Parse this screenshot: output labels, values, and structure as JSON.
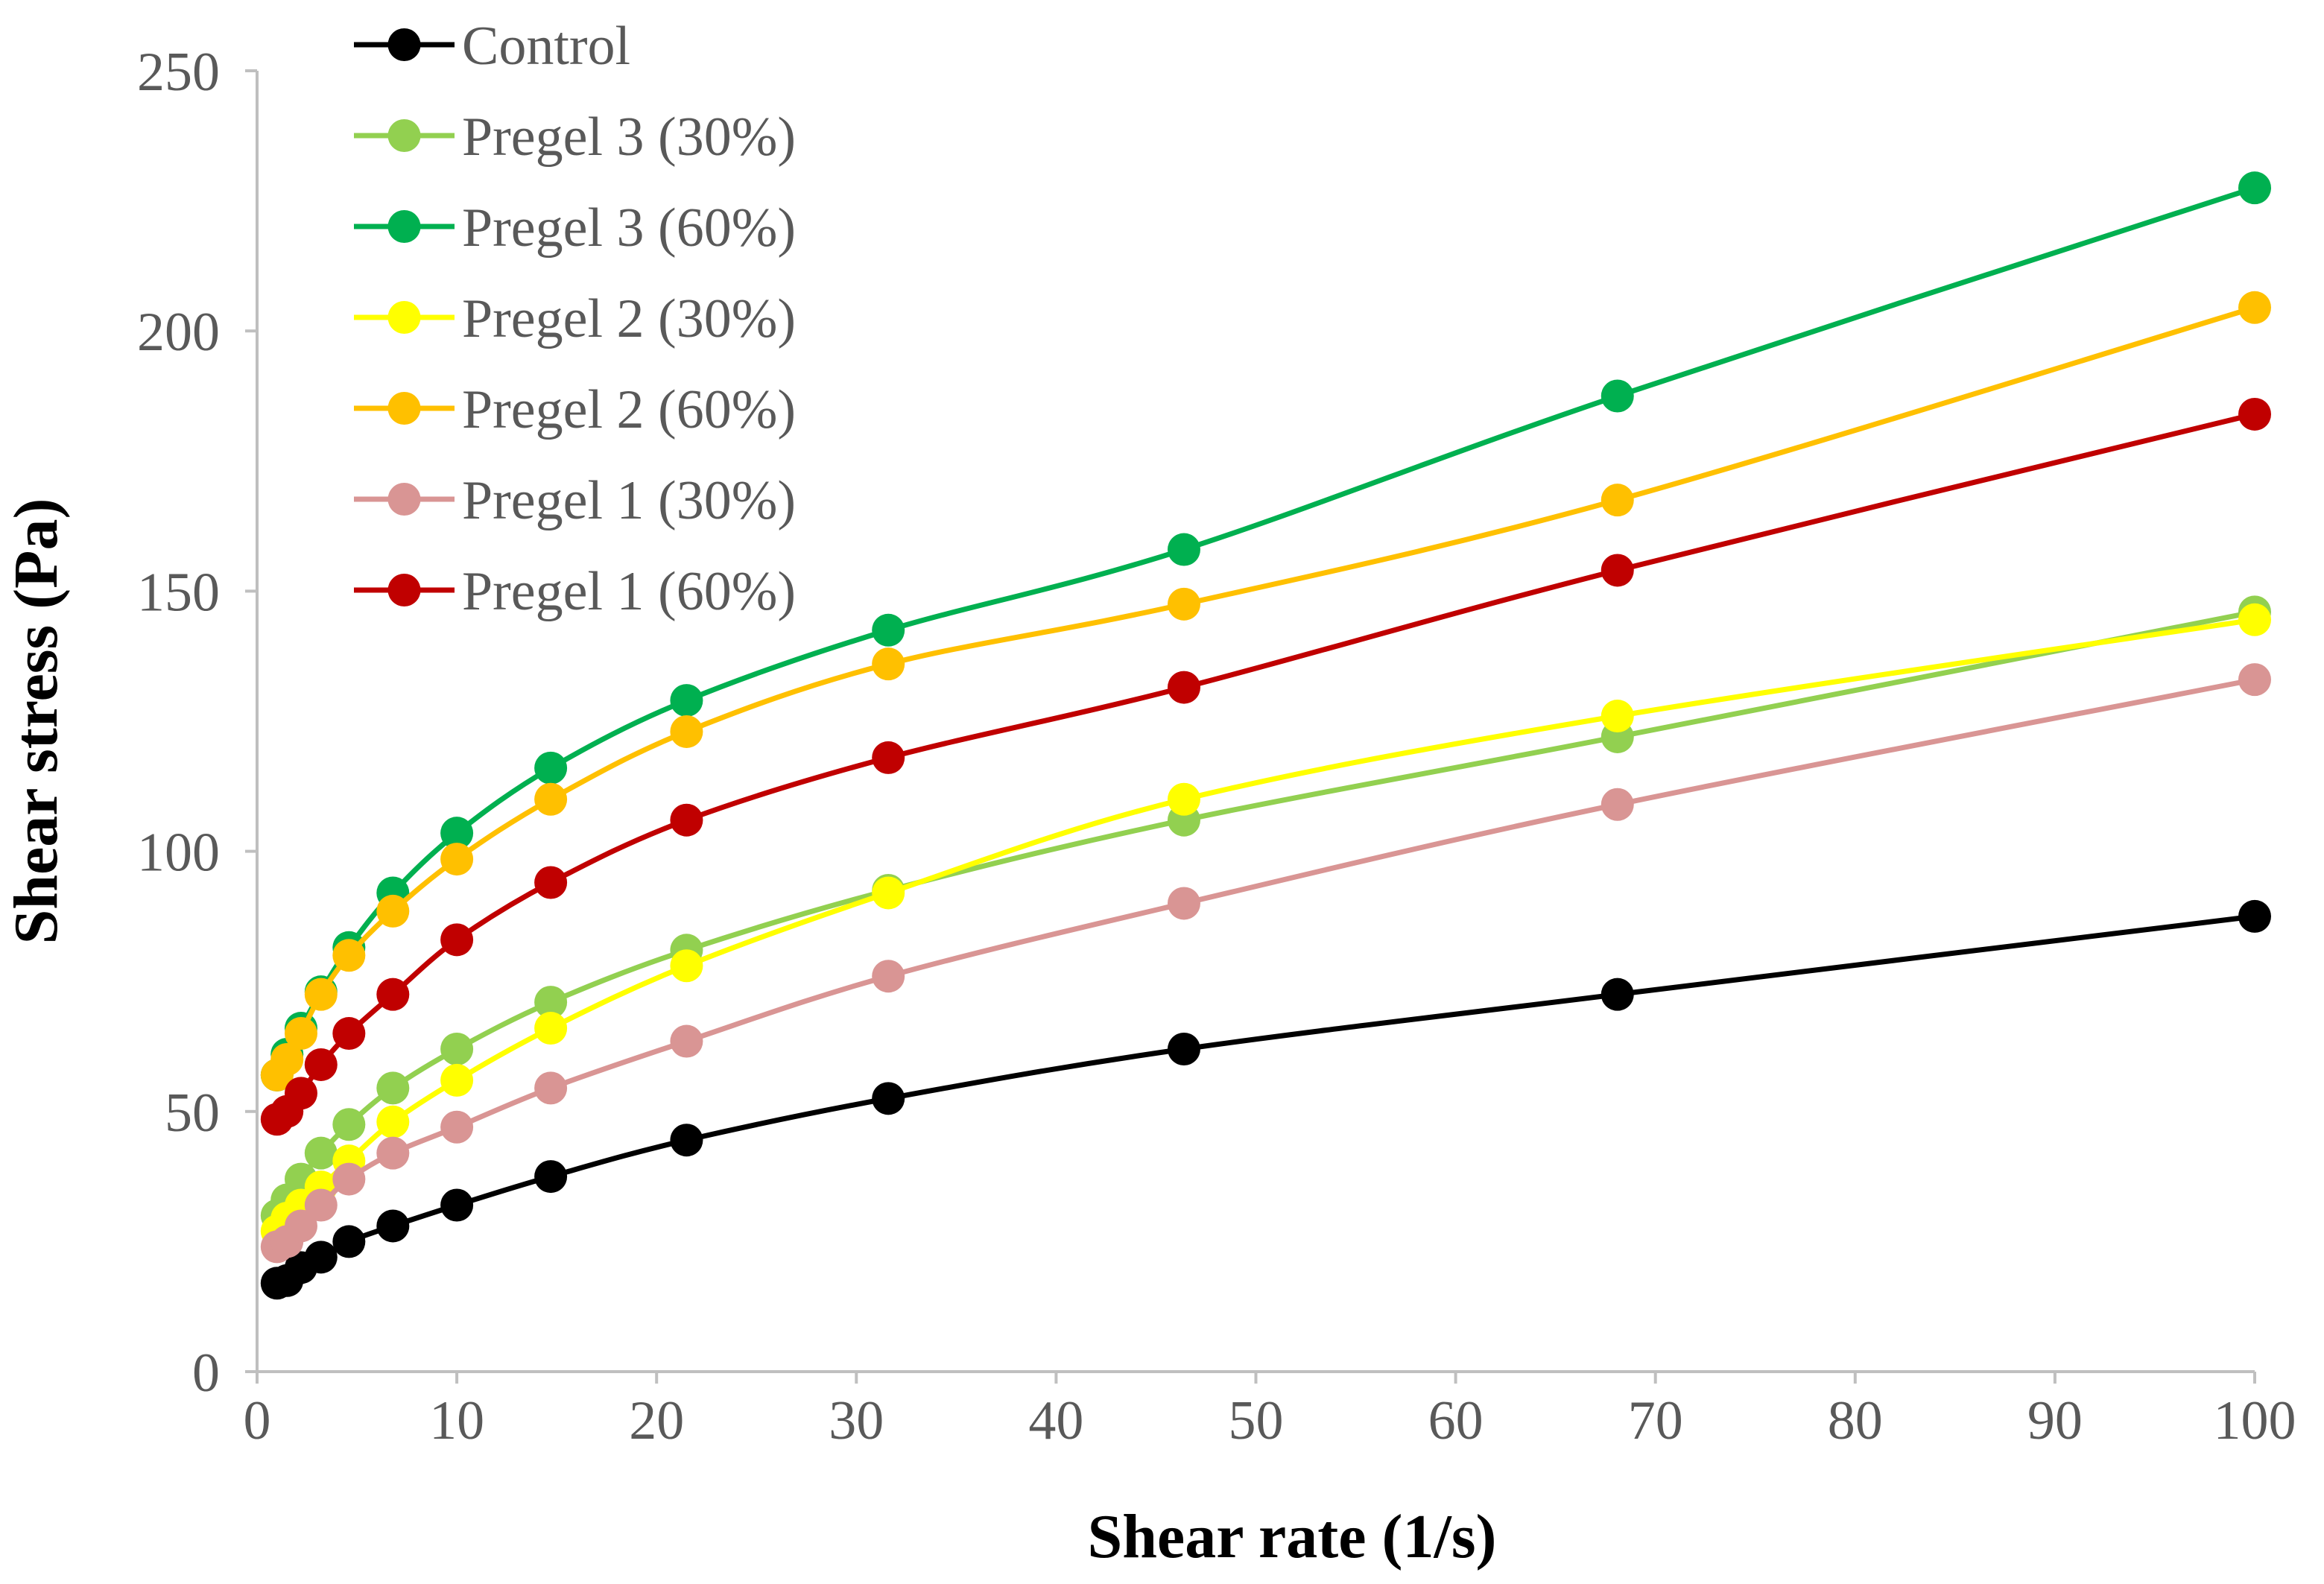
{
  "chart_data": {
    "type": "line",
    "title": "",
    "xlabel": "Shear rate (1/s)",
    "ylabel": "Shear stress (Pa)",
    "xlim": [
      0,
      100
    ],
    "ylim": [
      0,
      250
    ],
    "xticks": [
      0,
      10,
      20,
      30,
      40,
      50,
      60,
      70,
      80,
      90,
      100
    ],
    "yticks": [
      0,
      50,
      100,
      150,
      200,
      250
    ],
    "grid": false,
    "legend_position": "top-left",
    "x": [
      1,
      1.5,
      2.2,
      3.2,
      4.6,
      6.8,
      10,
      14.7,
      21.5,
      31.6,
      46.4,
      68.1,
      100
    ],
    "series": [
      {
        "name": "Control",
        "color": "#000000",
        "values": [
          17,
          17.5,
          20,
          22,
          25,
          28,
          32,
          37.5,
          44.5,
          52.5,
          62,
          72.5,
          87.5
        ]
      },
      {
        "name": "Pregel 3 (30%)",
        "color": "#92D050",
        "values": [
          30,
          33,
          37,
          42,
          47.5,
          54.5,
          62,
          71,
          81,
          92.5,
          106,
          122,
          146
        ]
      },
      {
        "name": "Pregel 3 (60%)",
        "color": "#00B050",
        "values": [
          57,
          61,
          66,
          73,
          81.5,
          92,
          103.5,
          116,
          129,
          142.5,
          158,
          187.5,
          227.5
        ]
      },
      {
        "name": "Pregel 2 (30%)",
        "color": "#FFFF00",
        "values": [
          27,
          29.5,
          32,
          35.5,
          40.5,
          48,
          56,
          66,
          78,
          92,
          110,
          126,
          144.5
        ]
      },
      {
        "name": "Pregel 2 (60%)",
        "color": "#FFC000",
        "values": [
          57,
          60,
          65,
          72.5,
          80,
          88.5,
          98.5,
          110,
          123,
          136,
          147.5,
          167.5,
          204.5
        ]
      },
      {
        "name": "Pregel 1 (30%)",
        "color": "#D99594",
        "values": [
          24,
          25,
          28,
          32,
          37,
          42,
          47,
          54.5,
          63.5,
          76,
          90,
          109,
          133
        ]
      },
      {
        "name": "Pregel 1 (60%)",
        "color": "#C00000",
        "values": [
          48.5,
          50,
          53.5,
          59,
          65,
          72.5,
          83,
          94,
          106,
          118,
          131.5,
          154,
          184
        ]
      }
    ]
  }
}
